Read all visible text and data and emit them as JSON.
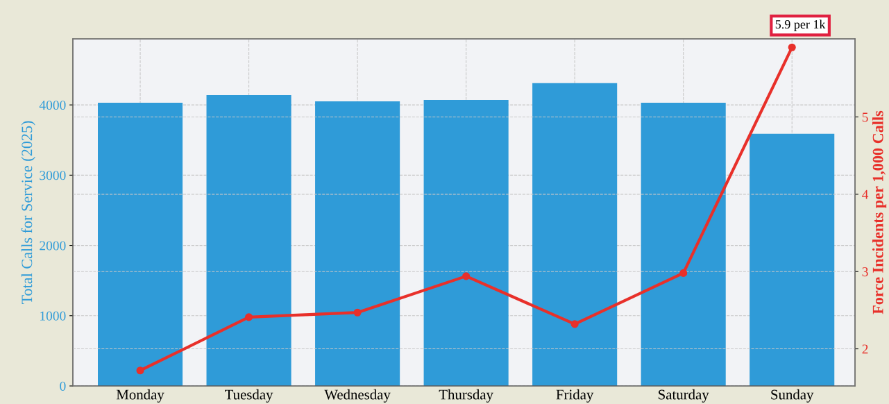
{
  "chart_data": {
    "type": "bar",
    "categories": [
      "Monday",
      "Tuesday",
      "Wednesday",
      "Thursday",
      "Friday",
      "Saturday",
      "Sunday"
    ],
    "series": [
      {
        "color": "#2f9bd8",
        "values": [
          4030,
          4140,
          4050,
          4070,
          4310,
          4030,
          3590
        ]
      },
      {
        "type": "line",
        "axis": "y2",
        "color": "#e8302a",
        "values": [
          1.72,
          2.41,
          2.47,
          2.94,
          2.32,
          2.98,
          5.9
        ]
      }
    ],
    "ylabel": "Total Calls for Service (2025)",
    "y2label": "Force Incidents per 1,000 Calls",
    "ylim": [
      0,
      4940
    ],
    "yticks": [
      0,
      1000,
      2000,
      3000,
      4000
    ],
    "y2lim": [
      1.52,
      6.01
    ],
    "y2ticks": [
      2,
      3,
      4,
      5
    ],
    "annotations": [
      "5.9 per 1k"
    ],
    "grid": true,
    "marker": "circle",
    "line_style": "solid"
  }
}
